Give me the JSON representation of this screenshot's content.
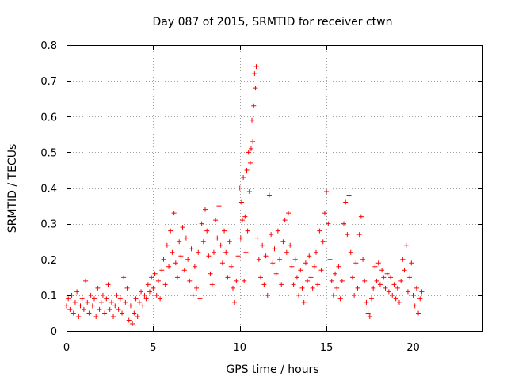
{
  "chart_data": {
    "type": "scatter",
    "title": "Day 087 of 2015, SRMTID for receiver ctwn",
    "xlabel": "GPS time / hours",
    "ylabel": "SRMTID / TECUs",
    "xlim": [
      0,
      24
    ],
    "ylim": [
      0,
      0.8
    ],
    "xticks": [
      0,
      5,
      10,
      15,
      20
    ],
    "yticks": [
      0,
      0.1,
      0.2,
      0.3,
      0.4,
      0.5,
      0.6,
      0.7,
      0.8
    ],
    "xtick_labels": [
      "0",
      "5",
      "10",
      "15",
      "20"
    ],
    "ytick_labels": [
      "0",
      "0.1",
      "0.2",
      "0.3",
      "0.4",
      "0.5",
      "0.6",
      "0.7",
      "0.8"
    ],
    "grid": true,
    "marker": "+",
    "color": "#ff0000",
    "series": [
      {
        "name": "SRMTID",
        "points": [
          [
            0.0,
            0.07
          ],
          [
            0.1,
            0.09
          ],
          [
            0.2,
            0.06
          ],
          [
            0.3,
            0.1
          ],
          [
            0.4,
            0.05
          ],
          [
            0.5,
            0.08
          ],
          [
            0.6,
            0.11
          ],
          [
            0.7,
            0.04
          ],
          [
            0.8,
            0.07
          ],
          [
            0.9,
            0.09
          ],
          [
            1.0,
            0.06
          ],
          [
            1.1,
            0.14
          ],
          [
            1.2,
            0.08
          ],
          [
            1.3,
            0.05
          ],
          [
            1.4,
            0.1
          ],
          [
            1.5,
            0.07
          ],
          [
            1.6,
            0.09
          ],
          [
            1.7,
            0.04
          ],
          [
            1.8,
            0.12
          ],
          [
            1.9,
            0.06
          ],
          [
            2.0,
            0.08
          ],
          [
            2.1,
            0.1
          ],
          [
            2.2,
            0.05
          ],
          [
            2.3,
            0.09
          ],
          [
            2.4,
            0.13
          ],
          [
            2.5,
            0.06
          ],
          [
            2.6,
            0.08
          ],
          [
            2.7,
            0.04
          ],
          [
            2.8,
            0.07
          ],
          [
            2.9,
            0.1
          ],
          [
            3.0,
            0.06
          ],
          [
            3.1,
            0.09
          ],
          [
            3.2,
            0.05
          ],
          [
            3.3,
            0.15
          ],
          [
            3.4,
            0.08
          ],
          [
            3.5,
            0.12
          ],
          [
            3.6,
            0.03
          ],
          [
            3.7,
            0.07
          ],
          [
            3.8,
            0.02
          ],
          [
            3.9,
            0.05
          ],
          [
            4.0,
            0.09
          ],
          [
            4.1,
            0.04
          ],
          [
            4.2,
            0.08
          ],
          [
            4.3,
            0.11
          ],
          [
            4.4,
            0.07
          ],
          [
            4.5,
            0.1
          ],
          [
            4.6,
            0.09
          ],
          [
            4.7,
            0.13
          ],
          [
            4.8,
            0.11
          ],
          [
            4.9,
            0.15
          ],
          [
            5.0,
            0.12
          ],
          [
            5.1,
            0.16
          ],
          [
            5.2,
            0.1
          ],
          [
            5.3,
            0.14
          ],
          [
            5.4,
            0.09
          ],
          [
            5.5,
            0.17
          ],
          [
            5.6,
            0.2
          ],
          [
            5.7,
            0.13
          ],
          [
            5.8,
            0.24
          ],
          [
            5.9,
            0.18
          ],
          [
            6.0,
            0.28
          ],
          [
            6.1,
            0.22
          ],
          [
            6.2,
            0.33
          ],
          [
            6.3,
            0.19
          ],
          [
            6.4,
            0.15
          ],
          [
            6.5,
            0.25
          ],
          [
            6.6,
            0.21
          ],
          [
            6.7,
            0.29
          ],
          [
            6.8,
            0.17
          ],
          [
            6.9,
            0.26
          ],
          [
            7.0,
            0.2
          ],
          [
            7.1,
            0.14
          ],
          [
            7.2,
            0.23
          ],
          [
            7.3,
            0.1
          ],
          [
            7.4,
            0.18
          ],
          [
            7.5,
            0.12
          ],
          [
            7.6,
            0.22
          ],
          [
            7.7,
            0.09
          ],
          [
            7.8,
            0.3
          ],
          [
            7.9,
            0.25
          ],
          [
            8.0,
            0.34
          ],
          [
            8.1,
            0.28
          ],
          [
            8.2,
            0.21
          ],
          [
            8.3,
            0.16
          ],
          [
            8.4,
            0.13
          ],
          [
            8.5,
            0.22
          ],
          [
            8.6,
            0.31
          ],
          [
            8.7,
            0.26
          ],
          [
            8.8,
            0.35
          ],
          [
            8.9,
            0.24
          ],
          [
            9.0,
            0.19
          ],
          [
            9.1,
            0.28
          ],
          [
            9.2,
            0.22
          ],
          [
            9.3,
            0.15
          ],
          [
            9.4,
            0.25
          ],
          [
            9.5,
            0.18
          ],
          [
            9.6,
            0.12
          ],
          [
            9.7,
            0.08
          ],
          [
            9.8,
            0.14
          ],
          [
            9.9,
            0.21
          ],
          [
            10.0,
            0.4
          ],
          [
            10.1,
            0.36
          ],
          [
            10.2,
            0.43
          ],
          [
            10.3,
            0.32
          ],
          [
            10.4,
            0.45
          ],
          [
            10.5,
            0.5
          ],
          [
            10.6,
            0.47
          ],
          [
            10.7,
            0.59
          ],
          [
            10.8,
            0.63
          ],
          [
            10.9,
            0.68
          ],
          [
            10.95,
            0.74
          ],
          [
            10.85,
            0.72
          ],
          [
            10.75,
            0.53
          ],
          [
            10.65,
            0.51
          ],
          [
            10.55,
            0.39
          ],
          [
            10.45,
            0.28
          ],
          [
            10.35,
            0.22
          ],
          [
            10.25,
            0.14
          ],
          [
            10.15,
            0.31
          ],
          [
            10.05,
            0.26
          ],
          [
            11.0,
            0.26
          ],
          [
            11.1,
            0.2
          ],
          [
            11.2,
            0.15
          ],
          [
            11.3,
            0.24
          ],
          [
            11.4,
            0.13
          ],
          [
            11.5,
            0.21
          ],
          [
            11.6,
            0.1
          ],
          [
            11.7,
            0.38
          ],
          [
            11.8,
            0.27
          ],
          [
            11.9,
            0.19
          ],
          [
            12.0,
            0.23
          ],
          [
            12.1,
            0.16
          ],
          [
            12.2,
            0.28
          ],
          [
            12.3,
            0.2
          ],
          [
            12.4,
            0.13
          ],
          [
            12.5,
            0.25
          ],
          [
            12.6,
            0.31
          ],
          [
            12.7,
            0.22
          ],
          [
            12.8,
            0.33
          ],
          [
            12.9,
            0.24
          ],
          [
            13.0,
            0.18
          ],
          [
            13.1,
            0.13
          ],
          [
            13.2,
            0.2
          ],
          [
            13.3,
            0.15
          ],
          [
            13.4,
            0.1
          ],
          [
            13.5,
            0.17
          ],
          [
            13.6,
            0.12
          ],
          [
            13.7,
            0.08
          ],
          [
            13.8,
            0.19
          ],
          [
            13.9,
            0.14
          ],
          [
            14.0,
            0.21
          ],
          [
            14.1,
            0.15
          ],
          [
            14.2,
            0.12
          ],
          [
            14.3,
            0.18
          ],
          [
            14.4,
            0.22
          ],
          [
            14.5,
            0.13
          ],
          [
            14.6,
            0.28
          ],
          [
            14.7,
            0.17
          ],
          [
            14.8,
            0.25
          ],
          [
            14.9,
            0.33
          ],
          [
            15.0,
            0.39
          ],
          [
            15.1,
            0.3
          ],
          [
            15.2,
            0.2
          ],
          [
            15.3,
            0.14
          ],
          [
            15.4,
            0.1
          ],
          [
            15.5,
            0.16
          ],
          [
            15.6,
            0.12
          ],
          [
            15.7,
            0.18
          ],
          [
            15.8,
            0.09
          ],
          [
            15.9,
            0.14
          ],
          [
            16.0,
            0.3
          ],
          [
            16.1,
            0.36
          ],
          [
            16.2,
            0.27
          ],
          [
            16.3,
            0.38
          ],
          [
            16.4,
            0.22
          ],
          [
            16.5,
            0.15
          ],
          [
            16.6,
            0.1
          ],
          [
            16.7,
            0.19
          ],
          [
            16.8,
            0.12
          ],
          [
            16.9,
            0.27
          ],
          [
            17.0,
            0.32
          ],
          [
            17.1,
            0.2
          ],
          [
            17.2,
            0.14
          ],
          [
            17.3,
            0.08
          ],
          [
            17.4,
            0.05
          ],
          [
            17.5,
            0.04
          ],
          [
            17.6,
            0.09
          ],
          [
            17.7,
            0.12
          ],
          [
            17.8,
            0.18
          ],
          [
            17.9,
            0.14
          ],
          [
            18.0,
            0.19
          ],
          [
            18.1,
            0.13
          ],
          [
            18.2,
            0.17
          ],
          [
            18.3,
            0.15
          ],
          [
            18.4,
            0.12
          ],
          [
            18.5,
            0.16
          ],
          [
            18.6,
            0.11
          ],
          [
            18.7,
            0.15
          ],
          [
            18.8,
            0.1
          ],
          [
            18.9,
            0.13
          ],
          [
            19.0,
            0.09
          ],
          [
            19.1,
            0.12
          ],
          [
            19.2,
            0.08
          ],
          [
            19.3,
            0.14
          ],
          [
            19.4,
            0.2
          ],
          [
            19.5,
            0.17
          ],
          [
            19.6,
            0.24
          ],
          [
            19.7,
            0.11
          ],
          [
            19.8,
            0.15
          ],
          [
            19.9,
            0.19
          ],
          [
            20.0,
            0.1
          ],
          [
            20.1,
            0.07
          ],
          [
            20.2,
            0.12
          ],
          [
            20.3,
            0.05
          ],
          [
            20.4,
            0.09
          ],
          [
            20.5,
            0.11
          ]
        ]
      }
    ]
  }
}
